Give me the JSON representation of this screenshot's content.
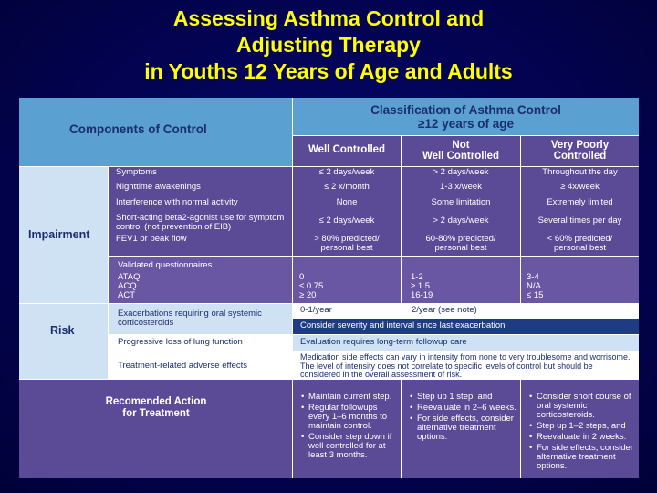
{
  "title": {
    "line1": "Assessing Asthma Control and",
    "line2": "Adjusting Therapy",
    "line3": "in Youths 12 Years of Age and Adults"
  },
  "header": {
    "components": "Components of Control",
    "classification_line1": "Classification of Asthma Control",
    "classification_line2": "≥12 years of age",
    "col_well": "Well Controlled",
    "col_not_line1": "Not",
    "col_not_line2": "Well Controlled",
    "col_poor_line1": "Very Poorly",
    "col_poor_line2": "Controlled"
  },
  "impairment": {
    "label": "Impairment",
    "rows": [
      {
        "item": "Symptoms",
        "well": "≤ 2 days/week",
        "not": "> 2 days/week",
        "poor": "Throughout the day"
      },
      {
        "item": "Nighttime awakenings",
        "well": "≤ 2 x/month",
        "not": "1-3 x/week",
        "poor": "≥ 4x/week"
      },
      {
        "item": "Interference with normal activity",
        "well": "None",
        "not": "Some limitation",
        "poor": "Extremely limited"
      },
      {
        "item": "Short-acting beta2-agonist use for symptom control (not prevention of EIB)",
        "well": "≤ 2 days/week",
        "not": "> 2 days/week",
        "poor": "Several times per day"
      },
      {
        "item": "FEV1 or peak flow",
        "well": "> 80% predicted/ personal best",
        "not": "60-80% predicted/ personal best",
        "poor": "< 60% predicted/ personal best"
      }
    ],
    "questionnaires": {
      "heading": "Validated questionnaires",
      "items": [
        "ATAQ",
        "ACQ",
        "ACT"
      ],
      "well": [
        "0",
        "≤ 0.75",
        "≥ 20"
      ],
      "not": [
        "1-2",
        "≥ 1.5",
        "16-19"
      ],
      "poor": [
        "3-4",
        "N/A",
        "≤ 15"
      ]
    }
  },
  "risk": {
    "label": "Risk",
    "exacerbations": "Exacerbations requiring oral systemic corticosteroids",
    "exac_well": "0-1/year",
    "exac_not": "2/year (see note)",
    "consider": "Consider severity and interval since last exacerbation",
    "lung": "Progressive loss of lung function",
    "lung_eval": "Evaluation requires long-term followup care",
    "adverse": "Treatment-related adverse effects",
    "adverse_text": "Medication side effects can vary in intensity from none to very troublesome and worrisome. The level of intensity does not correlate to specific levels of control but should be considered in the overall assessment of risk."
  },
  "action": {
    "label_line1": "Recomended Action",
    "label_line2": "for Treatment",
    "well": [
      "Maintain current step.",
      "Regular followups every 1–6 months to maintain control.",
      "Consider step down if well controlled for at least 3 months."
    ],
    "not": [
      "Step up 1 step, and",
      "Reevaluate in 2–6 weeks.",
      "For side effects, consider alternative treatment options."
    ],
    "poor": [
      "Consider short course of oral systemic corticosteroids.",
      "Step up 1–2 steps, and",
      "Reevaluate in 2 weeks.",
      "For side effects, consider alternative treatment options."
    ]
  },
  "colors": {
    "title": "#ffff00",
    "background": "#02024a",
    "header_blue": "#5aa0d0",
    "purple": "#5b4a95",
    "light_blue": "#cfe2f3"
  }
}
